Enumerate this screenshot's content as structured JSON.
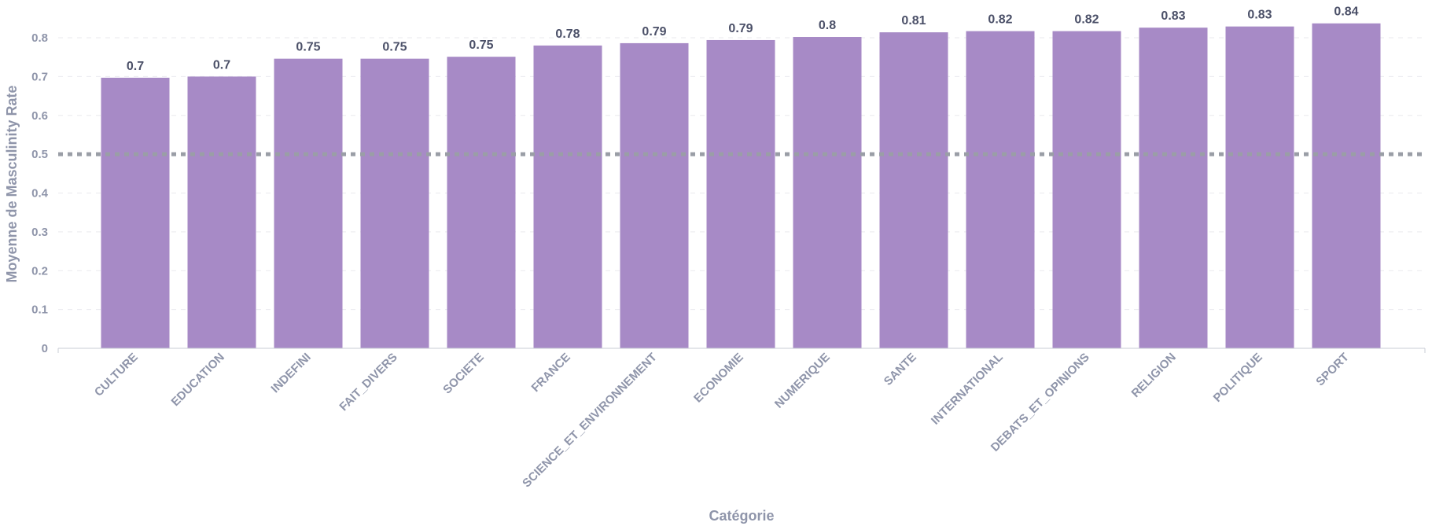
{
  "chart_data": {
    "type": "bar",
    "xlabel": "Catégorie",
    "ylabel": "Moyenne de Masculinity Rate",
    "ylim": [
      0,
      0.8
    ],
    "yticks": [
      "0",
      "0.1",
      "0.2",
      "0.3",
      "0.4",
      "0.5",
      "0.6",
      "0.7",
      "0.8"
    ],
    "categories": [
      "CULTURE",
      "EDUCATION",
      "INDEFINI",
      "FAIT_DIVERS",
      "SOCIETE",
      "FRANCE",
      "SCIENCE_ET_ENVIRONNEMENT",
      "ECONOMIE",
      "NUMERIQUE",
      "SANTE",
      "INTERNATIONAL",
      "DEBATS_ET_OPINIONS",
      "RELIGION",
      "POLITIQUE",
      "SPORT"
    ],
    "values": [
      0.697,
      0.7,
      0.746,
      0.746,
      0.751,
      0.78,
      0.786,
      0.794,
      0.802,
      0.814,
      0.817,
      0.817,
      0.826,
      0.829,
      0.837
    ],
    "data_labels": [
      "0.7",
      "0.7",
      "0.75",
      "0.75",
      "0.75",
      "0.78",
      "0.79",
      "0.79",
      "0.8",
      "0.81",
      "0.82",
      "0.82",
      "0.83",
      "0.83",
      "0.84"
    ],
    "reference_line": {
      "value": 0.5,
      "style": "dotted"
    },
    "grid": true,
    "colors": {
      "bar": "#a78ac6",
      "reference": "#9a9ea6",
      "grid": "#e9e9ee",
      "axis": "#c9ccd6",
      "text": "#8f95aa",
      "value_text": "#4b5068"
    }
  }
}
